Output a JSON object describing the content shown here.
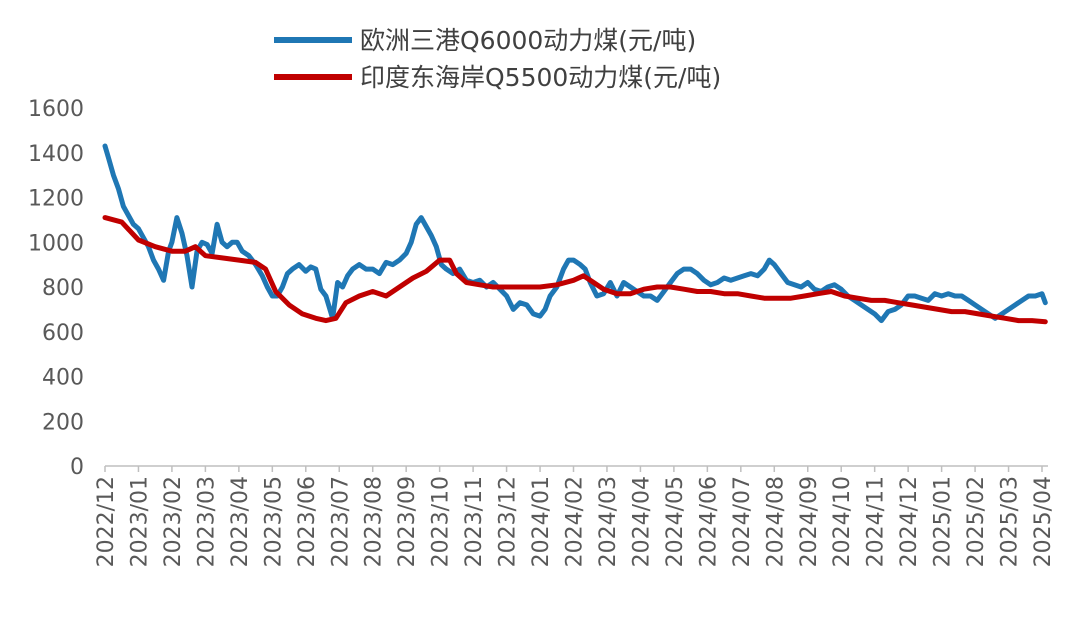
{
  "chart_data": {
    "type": "line",
    "title": "",
    "xlabel": "",
    "ylabel": "",
    "ylim": [
      0,
      1600
    ],
    "yticks": [
      0,
      200,
      400,
      600,
      800,
      1000,
      1200,
      1400,
      1600
    ],
    "categories": [
      "2022/12",
      "2023/01",
      "2023/02",
      "2023/03",
      "2023/04",
      "2023/05",
      "2023/06",
      "2023/07",
      "2023/08",
      "2023/09",
      "2023/10",
      "2023/11",
      "2023/12",
      "2024/01",
      "2024/02",
      "2024/03",
      "2024/04",
      "2024/05",
      "2024/06",
      "2024/07",
      "2024/08",
      "2024/09",
      "2024/10",
      "2024/11",
      "2024/12",
      "2025/01",
      "2025/02",
      "2025/03",
      "2025/04"
    ],
    "grid": false,
    "legend_position": "top",
    "series": [
      {
        "name": "欧洲三港Q6000动力煤(元/吨)",
        "color": "#1F77B4",
        "values": [
          [
            0,
            1430
          ],
          [
            0.1,
            1380
          ],
          [
            0.25,
            1300
          ],
          [
            0.4,
            1240
          ],
          [
            0.55,
            1160
          ],
          [
            0.7,
            1120
          ],
          [
            0.85,
            1080
          ],
          [
            1.0,
            1060
          ],
          [
            1.15,
            1020
          ],
          [
            1.3,
            980
          ],
          [
            1.45,
            920
          ],
          [
            1.6,
            880
          ],
          [
            1.75,
            830
          ],
          [
            1.9,
            960
          ],
          [
            2.0,
            1000
          ],
          [
            2.15,
            1110
          ],
          [
            2.3,
            1040
          ],
          [
            2.45,
            940
          ],
          [
            2.6,
            800
          ],
          [
            2.75,
            960
          ],
          [
            2.9,
            1000
          ],
          [
            3.05,
            990
          ],
          [
            3.2,
            950
          ],
          [
            3.35,
            1080
          ],
          [
            3.5,
            1000
          ],
          [
            3.65,
            980
          ],
          [
            3.8,
            1000
          ],
          [
            3.95,
            1000
          ],
          [
            4.1,
            960
          ],
          [
            4.3,
            940
          ],
          [
            4.5,
            900
          ],
          [
            4.7,
            850
          ],
          [
            4.85,
            800
          ],
          [
            5.0,
            760
          ],
          [
            5.15,
            760
          ],
          [
            5.3,
            800
          ],
          [
            5.45,
            860
          ],
          [
            5.6,
            880
          ],
          [
            5.8,
            900
          ],
          [
            6.0,
            870
          ],
          [
            6.15,
            890
          ],
          [
            6.3,
            880
          ],
          [
            6.45,
            790
          ],
          [
            6.6,
            760
          ],
          [
            6.8,
            660
          ],
          [
            6.95,
            820
          ],
          [
            7.1,
            800
          ],
          [
            7.25,
            850
          ],
          [
            7.4,
            880
          ],
          [
            7.6,
            900
          ],
          [
            7.8,
            880
          ],
          [
            8.0,
            880
          ],
          [
            8.2,
            860
          ],
          [
            8.4,
            910
          ],
          [
            8.6,
            900
          ],
          [
            8.8,
            920
          ],
          [
            9.0,
            950
          ],
          [
            9.15,
            1000
          ],
          [
            9.3,
            1080
          ],
          [
            9.45,
            1110
          ],
          [
            9.6,
            1070
          ],
          [
            9.75,
            1030
          ],
          [
            9.9,
            980
          ],
          [
            10.05,
            900
          ],
          [
            10.2,
            880
          ],
          [
            10.4,
            860
          ],
          [
            10.6,
            880
          ],
          [
            10.8,
            830
          ],
          [
            11.0,
            820
          ],
          [
            11.2,
            830
          ],
          [
            11.4,
            800
          ],
          [
            11.6,
            820
          ],
          [
            11.8,
            790
          ],
          [
            12.0,
            760
          ],
          [
            12.2,
            700
          ],
          [
            12.4,
            730
          ],
          [
            12.6,
            720
          ],
          [
            12.8,
            680
          ],
          [
            13.0,
            670
          ],
          [
            13.15,
            700
          ],
          [
            13.3,
            760
          ],
          [
            13.5,
            800
          ],
          [
            13.7,
            880
          ],
          [
            13.85,
            920
          ],
          [
            14.0,
            920
          ],
          [
            14.2,
            900
          ],
          [
            14.35,
            880
          ],
          [
            14.5,
            820
          ],
          [
            14.7,
            760
          ],
          [
            14.9,
            770
          ],
          [
            15.1,
            820
          ],
          [
            15.3,
            760
          ],
          [
            15.5,
            820
          ],
          [
            15.7,
            800
          ],
          [
            15.9,
            780
          ],
          [
            16.1,
            760
          ],
          [
            16.3,
            760
          ],
          [
            16.5,
            740
          ],
          [
            16.7,
            780
          ],
          [
            16.9,
            820
          ],
          [
            17.1,
            860
          ],
          [
            17.3,
            880
          ],
          [
            17.5,
            880
          ],
          [
            17.7,
            860
          ],
          [
            17.9,
            830
          ],
          [
            18.1,
            810
          ],
          [
            18.3,
            820
          ],
          [
            18.5,
            840
          ],
          [
            18.7,
            830
          ],
          [
            18.9,
            840
          ],
          [
            19.1,
            850
          ],
          [
            19.3,
            860
          ],
          [
            19.5,
            850
          ],
          [
            19.7,
            880
          ],
          [
            19.85,
            920
          ],
          [
            20.0,
            900
          ],
          [
            20.2,
            860
          ],
          [
            20.4,
            820
          ],
          [
            20.6,
            810
          ],
          [
            20.8,
            800
          ],
          [
            21.0,
            820
          ],
          [
            21.2,
            790
          ],
          [
            21.4,
            780
          ],
          [
            21.6,
            800
          ],
          [
            21.8,
            810
          ],
          [
            22.0,
            790
          ],
          [
            22.2,
            760
          ],
          [
            22.4,
            740
          ],
          [
            22.6,
            720
          ],
          [
            22.8,
            700
          ],
          [
            23.0,
            680
          ],
          [
            23.2,
            650
          ],
          [
            23.4,
            690
          ],
          [
            23.6,
            700
          ],
          [
            23.8,
            720
          ],
          [
            24.0,
            760
          ],
          [
            24.2,
            760
          ],
          [
            24.4,
            750
          ],
          [
            24.6,
            740
          ],
          [
            24.8,
            770
          ],
          [
            25.0,
            760
          ],
          [
            25.2,
            770
          ],
          [
            25.4,
            760
          ],
          [
            25.6,
            760
          ],
          [
            25.8,
            740
          ],
          [
            26.0,
            720
          ],
          [
            26.2,
            700
          ],
          [
            26.4,
            680
          ],
          [
            26.6,
            660
          ],
          [
            26.8,
            680
          ],
          [
            27.0,
            700
          ],
          [
            27.2,
            720
          ],
          [
            27.4,
            740
          ],
          [
            27.6,
            760
          ],
          [
            27.8,
            760
          ],
          [
            28.0,
            770
          ],
          [
            28.1,
            730
          ]
        ]
      },
      {
        "name": "印度东海岸Q5500动力煤(元/吨)",
        "color": "#C00000",
        "values": [
          [
            0,
            1110
          ],
          [
            0.5,
            1090
          ],
          [
            1.0,
            1010
          ],
          [
            1.5,
            980
          ],
          [
            2.0,
            960
          ],
          [
            2.4,
            960
          ],
          [
            2.7,
            980
          ],
          [
            3.0,
            940
          ],
          [
            3.5,
            930
          ],
          [
            4.0,
            920
          ],
          [
            4.5,
            910
          ],
          [
            4.8,
            880
          ],
          [
            5.1,
            780
          ],
          [
            5.5,
            720
          ],
          [
            5.9,
            680
          ],
          [
            6.3,
            660
          ],
          [
            6.6,
            650
          ],
          [
            6.9,
            660
          ],
          [
            7.2,
            730
          ],
          [
            7.6,
            760
          ],
          [
            8.0,
            780
          ],
          [
            8.4,
            760
          ],
          [
            8.8,
            800
          ],
          [
            9.2,
            840
          ],
          [
            9.6,
            870
          ],
          [
            10.0,
            920
          ],
          [
            10.3,
            920
          ],
          [
            10.5,
            860
          ],
          [
            10.8,
            820
          ],
          [
            11.2,
            810
          ],
          [
            11.6,
            800
          ],
          [
            12.0,
            800
          ],
          [
            12.5,
            800
          ],
          [
            13.0,
            800
          ],
          [
            13.5,
            810
          ],
          [
            14.0,
            830
          ],
          [
            14.3,
            850
          ],
          [
            14.6,
            820
          ],
          [
            14.9,
            790
          ],
          [
            15.3,
            770
          ],
          [
            15.7,
            770
          ],
          [
            16.1,
            790
          ],
          [
            16.5,
            800
          ],
          [
            16.9,
            800
          ],
          [
            17.3,
            790
          ],
          [
            17.7,
            780
          ],
          [
            18.1,
            780
          ],
          [
            18.5,
            770
          ],
          [
            18.9,
            770
          ],
          [
            19.3,
            760
          ],
          [
            19.7,
            750
          ],
          [
            20.1,
            750
          ],
          [
            20.5,
            750
          ],
          [
            20.9,
            760
          ],
          [
            21.3,
            770
          ],
          [
            21.7,
            780
          ],
          [
            22.1,
            760
          ],
          [
            22.5,
            750
          ],
          [
            22.9,
            740
          ],
          [
            23.3,
            740
          ],
          [
            23.7,
            730
          ],
          [
            24.1,
            720
          ],
          [
            24.5,
            710
          ],
          [
            24.9,
            700
          ],
          [
            25.3,
            690
          ],
          [
            25.7,
            690
          ],
          [
            26.1,
            680
          ],
          [
            26.5,
            670
          ],
          [
            26.9,
            660
          ],
          [
            27.3,
            650
          ],
          [
            27.7,
            650
          ],
          [
            28.1,
            645
          ]
        ]
      }
    ]
  }
}
